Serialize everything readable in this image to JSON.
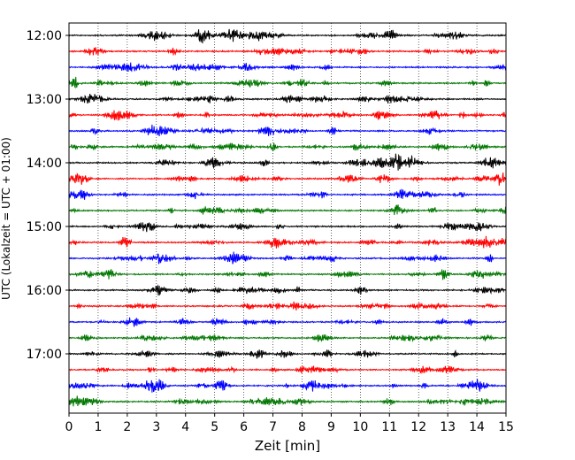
{
  "chart_data": {
    "type": "line",
    "title": "",
    "xlabel": "Zeit  [min]",
    "ylabel": "UTC (Lokalzeit = UTC + 01:00)",
    "xlim": [
      0,
      15
    ],
    "x_ticks": [
      0,
      1,
      2,
      3,
      4,
      5,
      6,
      7,
      8,
      9,
      10,
      11,
      12,
      13,
      14,
      15
    ],
    "y_tick_labels": [
      "12:00",
      "13:00",
      "14:00",
      "15:00",
      "16:00",
      "17:00"
    ],
    "grid": "vertical dotted lines at every minute",
    "trace_interval_minutes": 15,
    "trace_colors": [
      "#000000",
      "#ff0000",
      "#0000ff",
      "#007700"
    ],
    "traces": [
      {
        "start": "12:00",
        "color": "#000000"
      },
      {
        "start": "12:15",
        "color": "#ff0000"
      },
      {
        "start": "12:30",
        "color": "#0000ff"
      },
      {
        "start": "12:45",
        "color": "#007700"
      },
      {
        "start": "13:00",
        "color": "#000000"
      },
      {
        "start": "13:15",
        "color": "#ff0000"
      },
      {
        "start": "13:30",
        "color": "#0000ff"
      },
      {
        "start": "13:45",
        "color": "#007700"
      },
      {
        "start": "14:00",
        "color": "#000000"
      },
      {
        "start": "14:15",
        "color": "#ff0000"
      },
      {
        "start": "14:30",
        "color": "#0000ff"
      },
      {
        "start": "14:45",
        "color": "#007700"
      },
      {
        "start": "15:00",
        "color": "#000000"
      },
      {
        "start": "15:15",
        "color": "#ff0000"
      },
      {
        "start": "15:30",
        "color": "#0000ff"
      },
      {
        "start": "15:45",
        "color": "#007700"
      },
      {
        "start": "16:00",
        "color": "#000000"
      },
      {
        "start": "16:15",
        "color": "#ff0000"
      },
      {
        "start": "16:30",
        "color": "#0000ff"
      },
      {
        "start": "16:45",
        "color": "#007700"
      },
      {
        "start": "17:00",
        "color": "#000000"
      },
      {
        "start": "17:15",
        "color": "#ff0000"
      },
      {
        "start": "17:30",
        "color": "#0000ff"
      },
      {
        "start": "17:45",
        "color": "#007700"
      }
    ]
  }
}
